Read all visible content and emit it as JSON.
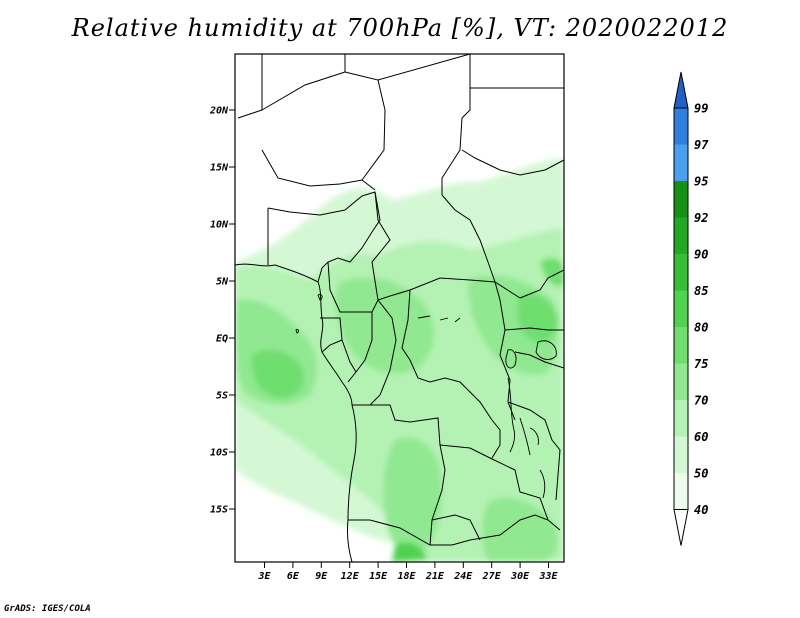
{
  "title": "Relative humidity at 700hPa [%], VT: 2020022012",
  "credit": "GrADS: IGES/COLA",
  "map": {
    "lat_labels": [
      "20N",
      "15N",
      "10N",
      "5N",
      "EQ",
      "5S",
      "10S",
      "15S"
    ],
    "lon_labels": [
      "3E",
      "6E",
      "9E",
      "12E",
      "15E",
      "18E",
      "21E",
      "24E",
      "27E",
      "30E",
      "33E"
    ]
  },
  "colorbar": {
    "levels": [
      "99",
      "97",
      "95",
      "92",
      "90",
      "85",
      "80",
      "75",
      "70",
      "60",
      "50",
      "40"
    ],
    "colors": [
      "#2060c8",
      "#2f7fe0",
      "#4aa0ee",
      "#149214",
      "#22a822",
      "#36be36",
      "#4fd24f",
      "#6ede6e",
      "#90e890",
      "#b4f2b4",
      "#d4f8d4",
      "#eefcee"
    ]
  }
}
